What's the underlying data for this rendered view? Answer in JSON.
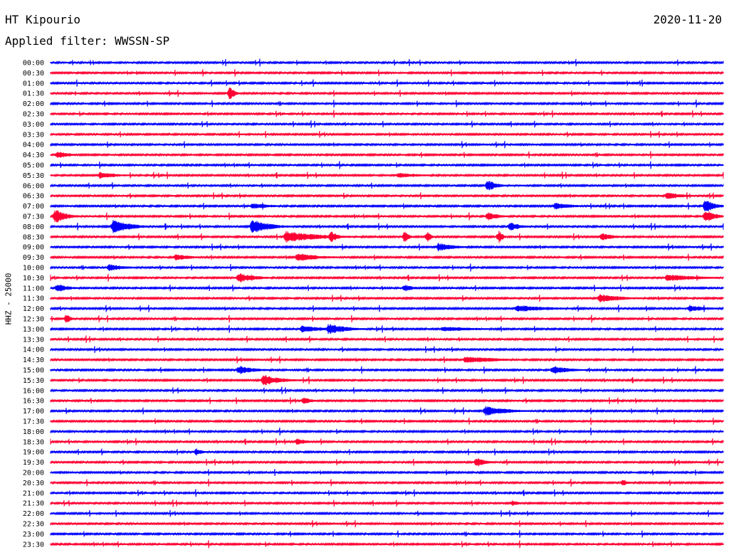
{
  "header": {
    "station": "HT Kipourio",
    "date": "2020-11-20",
    "filter": "Applied filter: WWSSN-SP"
  },
  "chart_data": {
    "type": "line",
    "title": "",
    "ylabel": "HHZ - 25000",
    "xlabel": "",
    "row_labels": [
      "00:00",
      "00:30",
      "01:00",
      "01:30",
      "02:00",
      "02:30",
      "03:00",
      "03:30",
      "04:00",
      "04:30",
      "05:00",
      "05:30",
      "06:00",
      "06:30",
      "07:00",
      "07:30",
      "08:00",
      "08:30",
      "09:00",
      "09:30",
      "10:00",
      "10:30",
      "11:00",
      "11:30",
      "12:00",
      "12:30",
      "13:00",
      "13:30",
      "14:00",
      "14:30",
      "15:00",
      "15:30",
      "16:00",
      "16:30",
      "17:00",
      "17:30",
      "18:00",
      "18:30",
      "19:00",
      "19:30",
      "20:00",
      "20:30",
      "21:00",
      "21:30",
      "22:00",
      "22:30",
      "23:00",
      "23:30"
    ],
    "series_colors": [
      "#0000ff",
      "#ff0033"
    ],
    "row_minutes": 30,
    "events": [
      {
        "row": "01:30",
        "minute": 8,
        "amp": 10,
        "dur": 0.4
      },
      {
        "row": "04:30",
        "minute": 0.3,
        "amp": 6,
        "dur": 1
      },
      {
        "row": "05:30",
        "minute": 2.2,
        "amp": 5,
        "dur": 1.5
      },
      {
        "row": "05:30",
        "minute": 15.5,
        "amp": 4,
        "dur": 2
      },
      {
        "row": "06:00",
        "minute": 19.5,
        "amp": 8,
        "dur": 0.8
      },
      {
        "row": "06:30",
        "minute": 27.5,
        "amp": 5,
        "dur": 1.5
      },
      {
        "row": "07:00",
        "minute": 9,
        "amp": 4,
        "dur": 2
      },
      {
        "row": "07:00",
        "minute": 22.5,
        "amp": 5,
        "dur": 1.5
      },
      {
        "row": "07:00",
        "minute": 29.2,
        "amp": 10,
        "dur": 0.8
      },
      {
        "row": "07:30",
        "minute": 0.2,
        "amp": 10,
        "dur": 1
      },
      {
        "row": "07:30",
        "minute": 19.5,
        "amp": 6,
        "dur": 1
      },
      {
        "row": "07:30",
        "minute": 29.2,
        "amp": 10,
        "dur": 0.8
      },
      {
        "row": "08:00",
        "minute": 2.8,
        "amp": 10,
        "dur": 1.5
      },
      {
        "row": "08:00",
        "minute": 9,
        "amp": 10,
        "dur": 1.5
      },
      {
        "row": "08:00",
        "minute": 20.5,
        "amp": 6,
        "dur": 1
      },
      {
        "row": "08:30",
        "minute": 10.5,
        "amp": 8,
        "dur": 3
      },
      {
        "row": "08:30",
        "minute": 12.5,
        "amp": 10,
        "dur": 0.5
      },
      {
        "row": "08:30",
        "minute": 15.8,
        "amp": 10,
        "dur": 0.3
      },
      {
        "row": "08:30",
        "minute": 16.8,
        "amp": 9,
        "dur": 0.3
      },
      {
        "row": "08:30",
        "minute": 20,
        "amp": 10,
        "dur": 0.3
      },
      {
        "row": "08:30",
        "minute": 24.6,
        "amp": 6,
        "dur": 1
      },
      {
        "row": "09:00",
        "minute": 17.3,
        "amp": 6,
        "dur": 1.5
      },
      {
        "row": "09:30",
        "minute": 5.6,
        "amp": 5,
        "dur": 1.5
      },
      {
        "row": "09:30",
        "minute": 11,
        "amp": 6,
        "dur": 2
      },
      {
        "row": "10:00",
        "minute": 2.6,
        "amp": 5,
        "dur": 1.5
      },
      {
        "row": "10:30",
        "minute": 8.4,
        "amp": 7,
        "dur": 1.5
      },
      {
        "row": "10:30",
        "minute": 27.5,
        "amp": 5,
        "dur": 3
      },
      {
        "row": "11:00",
        "minute": 0.3,
        "amp": 6,
        "dur": 1
      },
      {
        "row": "11:00",
        "minute": 15.8,
        "amp": 5,
        "dur": 0.8
      },
      {
        "row": "11:30",
        "minute": 24.5,
        "amp": 6,
        "dur": 2
      },
      {
        "row": "12:00",
        "minute": 20.8,
        "amp": 5,
        "dur": 3
      },
      {
        "row": "12:00",
        "minute": 28.5,
        "amp": 5,
        "dur": 1.5
      },
      {
        "row": "12:30",
        "minute": 0.7,
        "amp": 7,
        "dur": 0.4
      },
      {
        "row": "13:00",
        "minute": 11.2,
        "amp": 5,
        "dur": 2
      },
      {
        "row": "13:00",
        "minute": 12.4,
        "amp": 8,
        "dur": 1.5
      },
      {
        "row": "13:00",
        "minute": 17.5,
        "amp": 4,
        "dur": 3
      },
      {
        "row": "14:30",
        "minute": 18.5,
        "amp": 5,
        "dur": 3
      },
      {
        "row": "15:00",
        "minute": 8.4,
        "amp": 6,
        "dur": 1.5
      },
      {
        "row": "15:00",
        "minute": 22.4,
        "amp": 6,
        "dur": 1.5
      },
      {
        "row": "15:30",
        "minute": 9.5,
        "amp": 8,
        "dur": 1.5
      },
      {
        "row": "16:30",
        "minute": 11.3,
        "amp": 6,
        "dur": 0.6
      },
      {
        "row": "17:00",
        "minute": 19.4,
        "amp": 7,
        "dur": 2
      },
      {
        "row": "18:30",
        "minute": 11,
        "amp": 5,
        "dur": 0.8
      },
      {
        "row": "19:00",
        "minute": 6.5,
        "amp": 5,
        "dur": 0.6
      },
      {
        "row": "19:30",
        "minute": 19,
        "amp": 7,
        "dur": 0.8
      },
      {
        "row": "20:30",
        "minute": 25.5,
        "amp": 4,
        "dur": 0.6
      },
      {
        "row": "21:30",
        "minute": 20.6,
        "amp": 4,
        "dur": 0.6
      }
    ]
  }
}
